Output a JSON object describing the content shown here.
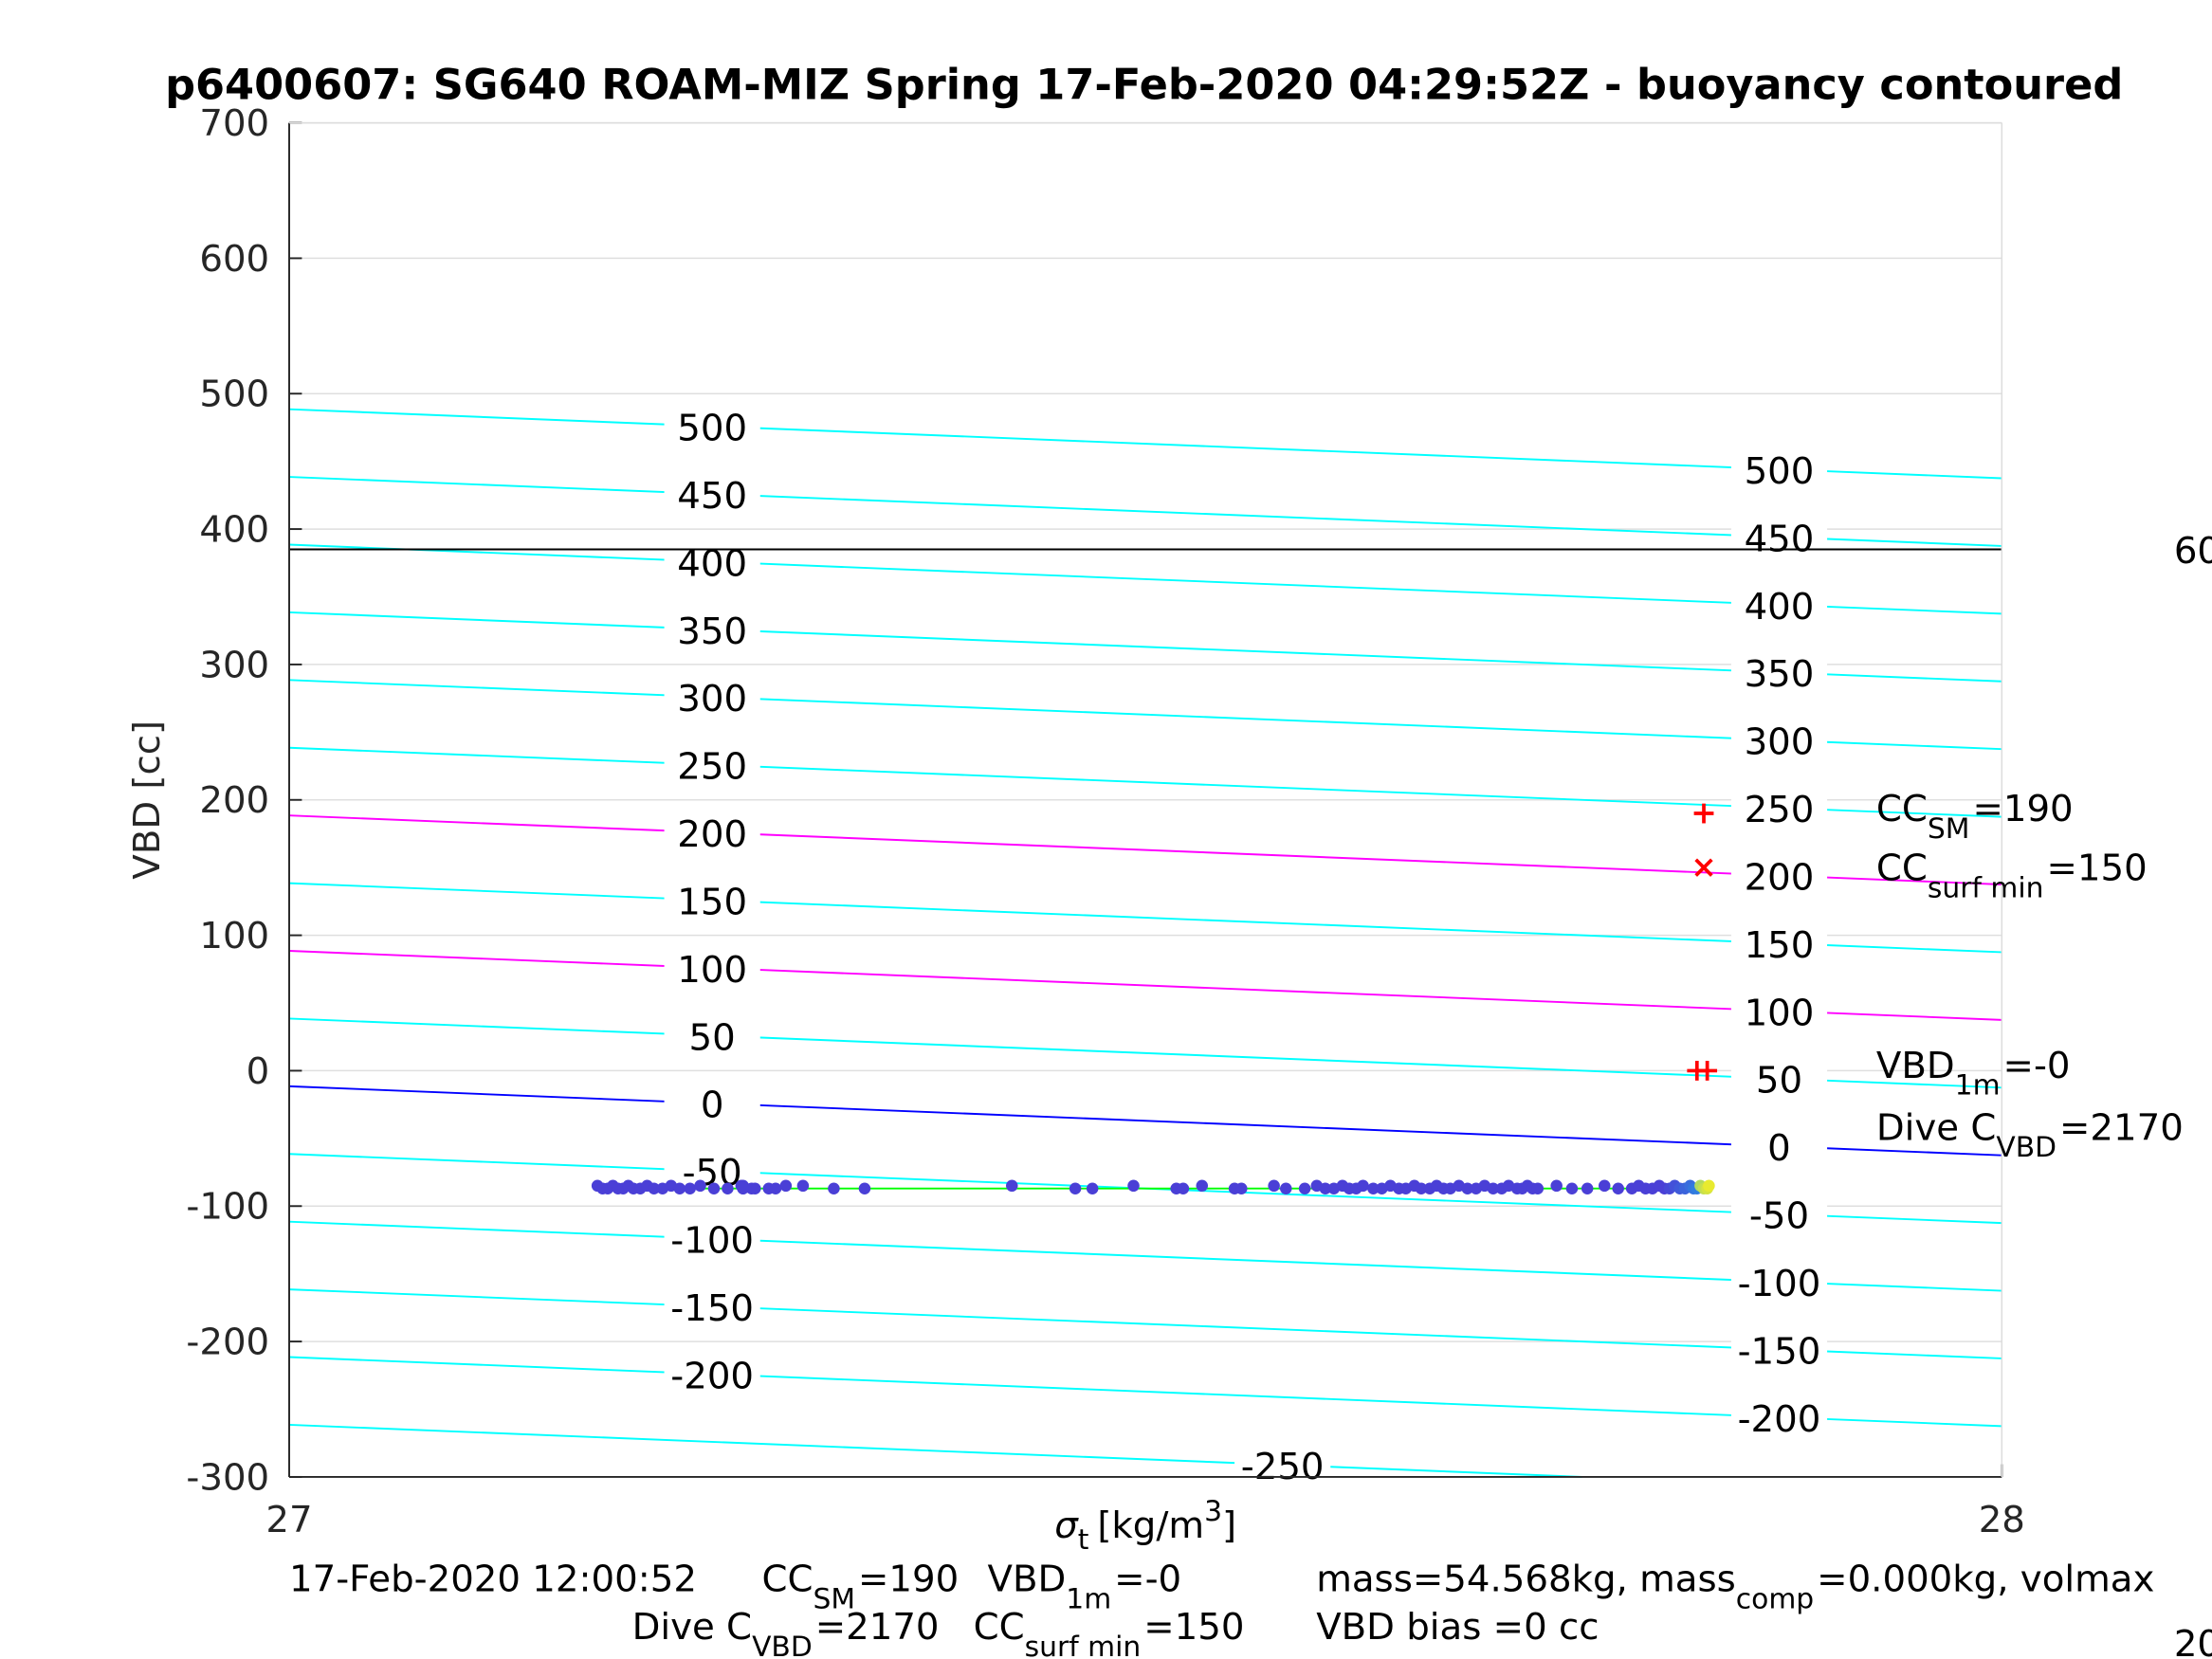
{
  "chart_data": {
    "type": "line",
    "title": "p6400607: SG640 ROAM-MIZ Spring 17-Feb-2020 04:29:52Z - buoyancy contoured",
    "xlabel": {
      "sym": "σ",
      "sub": "t",
      "unit": "[kg/m",
      "sup": "3",
      "close": "]"
    },
    "ylabel": "VBD [cc]",
    "xlim": [
      27,
      28
    ],
    "ylim": [
      -300,
      700
    ],
    "xticks": [
      "27",
      "28"
    ],
    "yticks": [
      "700",
      "600",
      "500",
      "400",
      "300",
      "200",
      "100",
      "0",
      "-100",
      "-200",
      "-300"
    ],
    "grid": true,
    "contours": {
      "levels": [
        "500",
        "450",
        "400",
        "350",
        "300",
        "250",
        "200",
        "150",
        "100",
        "50",
        "0",
        "-50",
        "-100",
        "-150",
        "-200",
        "-250"
      ],
      "left_offset": -11.5,
      "right_offset": -62.5,
      "highlight": {
        "200": "#ff00ff",
        "100": "#ff00ff",
        "0": "#0000ff"
      },
      "default_color": "#00ffff"
    },
    "reference_line": {
      "vbd": 385,
      "color": "#000000"
    },
    "reference_line_label": "60",
    "corner_label": "20",
    "fit_line": {
      "x": [
        27.18,
        27.83
      ],
      "y": [
        -87,
        -87
      ],
      "color": "#00ff00"
    },
    "points": {
      "vbd": -86,
      "sigma": [
        27.18,
        27.183,
        27.186,
        27.189,
        27.192,
        27.195,
        27.198,
        27.201,
        27.205,
        27.209,
        27.213,
        27.218,
        27.223,
        27.228,
        27.234,
        27.24,
        27.248,
        27.256,
        27.264,
        27.272,
        27.28,
        27.265,
        27.27,
        27.265,
        27.29,
        27.265,
        27.284,
        27.3,
        27.318,
        27.336,
        27.422,
        27.459,
        27.469,
        27.493,
        27.518,
        27.522,
        27.533,
        27.552,
        27.556,
        27.575,
        27.582,
        27.593,
        27.6,
        27.605,
        27.61,
        27.615,
        27.619,
        27.623,
        27.627,
        27.633,
        27.638,
        27.643,
        27.648,
        27.652,
        27.657,
        27.661,
        27.666,
        27.67,
        27.674,
        27.678,
        27.683,
        27.688,
        27.693,
        27.698,
        27.703,
        27.708,
        27.712,
        27.717,
        27.72,
        27.723,
        27.726,
        27.729,
        27.74,
        27.749,
        27.758,
        27.768,
        27.776,
        27.784,
        27.788,
        27.792,
        27.796,
        27.8,
        27.803,
        27.806,
        27.809,
        27.812,
        27.815,
        27.818,
        27.82,
        27.822,
        27.824,
        27.826,
        27.828,
        27.829
      ]
    },
    "markers": [
      {
        "symbol": "+",
        "sigma": 27.826,
        "vbd": 190,
        "color": "#ff0000"
      },
      {
        "symbol": "x",
        "sigma": 27.826,
        "vbd": 150,
        "color": "#ff0000"
      },
      {
        "symbol": "+",
        "sigma": 27.822,
        "vbd": 0,
        "color": "#ff0000"
      },
      {
        "symbol": "+",
        "sigma": 27.828,
        "vbd": 0,
        "color": "#ff0000"
      }
    ]
  },
  "annotations": {
    "cc_sm": {
      "main": "CC",
      "sub": "SM",
      "value": "=190"
    },
    "cc_surf_min": {
      "main": "CC",
      "sub": "surf min",
      "value": "=150"
    },
    "vbd_1m": {
      "main": "VBD",
      "sub": "1m",
      "value": "=-0"
    },
    "dive_c_vbd": {
      "main": "Dive C",
      "sub": "VBD",
      "value": "=2170"
    },
    "timestamp": "17-Feb-2020 12:00:52",
    "mass_line": {
      "a": "mass=54.568kg, mass",
      "sub": "comp",
      "b": "=0.000kg, volmax"
    },
    "vbd_bias": "VBD bias =0 cc"
  }
}
